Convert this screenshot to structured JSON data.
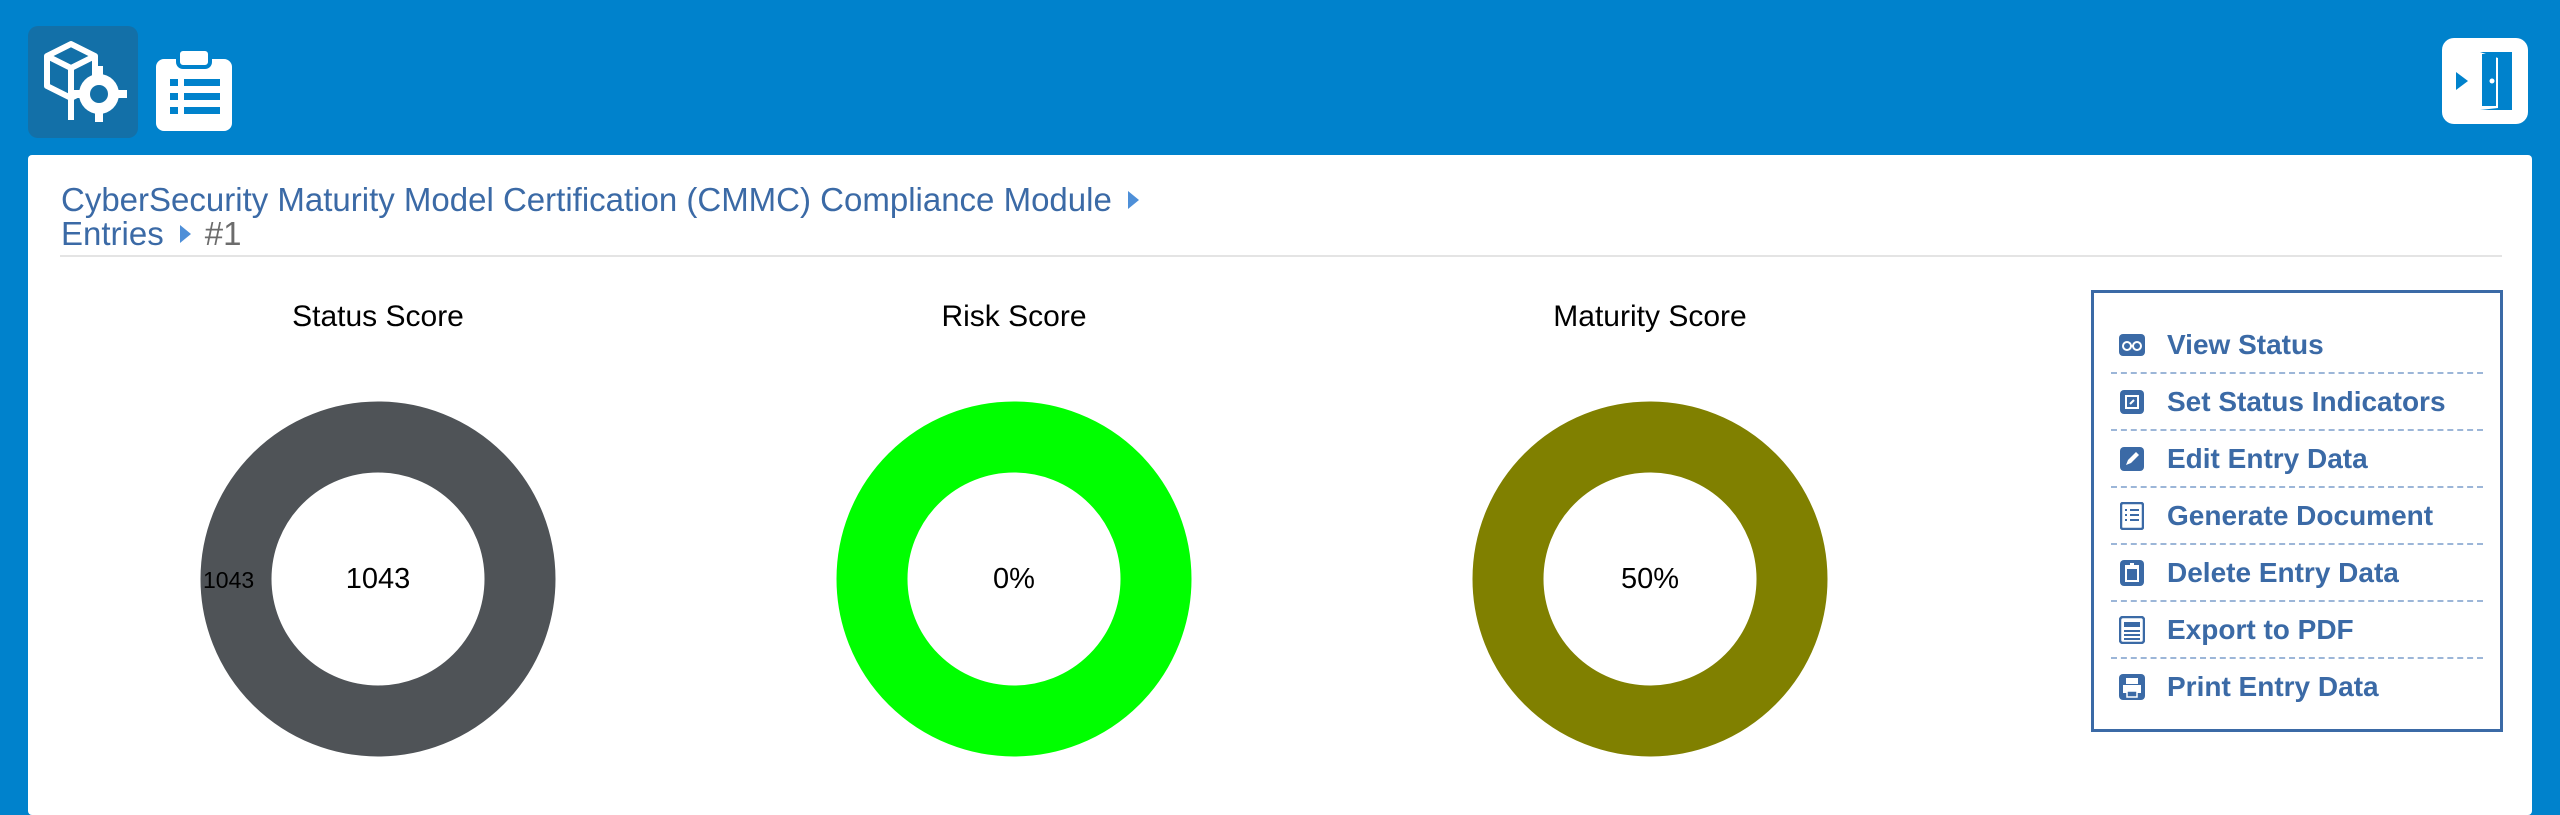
{
  "header": {
    "apps": [
      {
        "name": "cmmc-module",
        "icon": "gear-box-icon",
        "active": true
      },
      {
        "name": "clipboard",
        "icon": "clipboard-icon",
        "active": false
      }
    ],
    "exit_icon": "exit-door-icon"
  },
  "breadcrumb": {
    "module": "CyberSecurity Maturity Model Certification (CMMC) Compliance Module",
    "section": "Entries",
    "current": "#1"
  },
  "charts": [
    {
      "title": "Status Score",
      "center_label": "1043",
      "slice_label": "1043",
      "color": "#4f5357"
    },
    {
      "title": "Risk Score",
      "center_label": "0%",
      "color": "#00ff00"
    },
    {
      "title": "Maturity Score",
      "center_label": "50%",
      "color": "#808000"
    }
  ],
  "menu": {
    "items": [
      {
        "label": "View Status",
        "icon": "glasses-icon"
      },
      {
        "label": "Set Status Indicators",
        "icon": "status-indicator-icon"
      },
      {
        "label": "Edit Entry Data",
        "icon": "pencil-icon"
      },
      {
        "label": "Generate Document",
        "icon": "document-icon"
      },
      {
        "label": "Delete Entry Data",
        "icon": "trash-icon"
      },
      {
        "label": "Export to PDF",
        "icon": "pdf-export-icon"
      },
      {
        "label": "Print Entry Data",
        "icon": "printer-icon"
      }
    ]
  },
  "colors": {
    "header_bg": "#0082cc",
    "link": "#3b6aa6",
    "arrow": "#4e8fd8"
  }
}
